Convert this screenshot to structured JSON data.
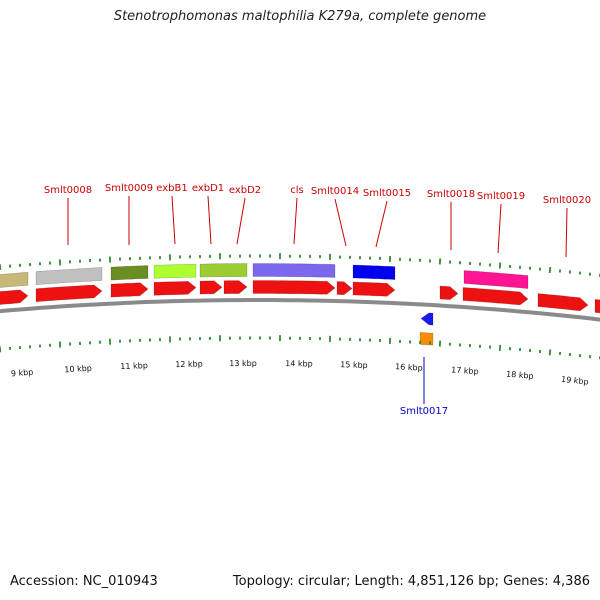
{
  "title": "Stenotrophomonas maltophilia K279a, complete genome",
  "footer": {
    "accession": "Accession: NC_010943",
    "stats": "Topology: circular; Length: 4,851,126 bp; Genes: 4,386"
  },
  "scale_labels": [
    "9 kbp",
    "10 kbp",
    "11 kbp",
    "12 kbp",
    "13 kbp",
    "14 kbp",
    "15 kbp",
    "16 kbp",
    "17 kbp",
    "18 kbp",
    "19 kbp"
  ],
  "gene_labels": [
    {
      "name": "Smlt0008",
      "color": "#cc0000"
    },
    {
      "name": "Smlt0009",
      "color": "#cc0000"
    },
    {
      "name": "exbB1",
      "color": "#cc0000"
    },
    {
      "name": "exbD1",
      "color": "#cc0000"
    },
    {
      "name": "exbD2",
      "color": "#cc0000"
    },
    {
      "name": "cls",
      "color": "#cc0000"
    },
    {
      "name": "Smlt0014",
      "color": "#cc0000"
    },
    {
      "name": "Smlt0015",
      "color": "#cc0000"
    },
    {
      "name": "Smlt0018",
      "color": "#cc0000"
    },
    {
      "name": "Smlt0019",
      "color": "#cc0000"
    },
    {
      "name": "Smlt0020",
      "color": "#cc0000"
    },
    {
      "name": "Smlt0017",
      "color": "#0000cc"
    }
  ],
  "colors": {
    "cds_forward": "#ee1111",
    "cds_reverse": "#1a1aee",
    "rna": "#ff8c00",
    "tick": "#2e8b2e",
    "backbone": "#8a8a8a"
  },
  "cog_colors": [
    "#c8b878",
    "#c0c0c0",
    "#6b8e23",
    "#adff2f",
    "#9acd32",
    "#7b68ee",
    "#0000ee",
    "#ff1493"
  ]
}
